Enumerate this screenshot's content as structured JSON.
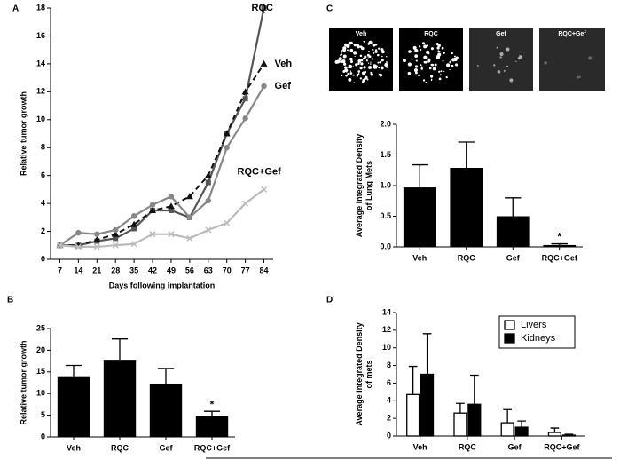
{
  "chart_data": [
    {
      "type": "line",
      "panel_label": "A",
      "xlabel": "Days following implantation",
      "ylabel": "Relative tumor growth",
      "categories": [
        "7",
        "14",
        "21",
        "28",
        "35",
        "42",
        "49",
        "56",
        "63",
        "70",
        "77",
        "84"
      ],
      "ylim": [
        0,
        18
      ],
      "yticks": [
        0,
        2,
        4,
        6,
        8,
        10,
        12,
        14,
        16,
        18
      ],
      "series": [
        {
          "name": "RQC",
          "color": "#555555",
          "marker": "square",
          "dash": false,
          "values": [
            1,
            1.0,
            1.3,
            1.5,
            2.2,
            3.5,
            3.5,
            3.0,
            5.5,
            9.0,
            11.5,
            18
          ]
        },
        {
          "name": "Veh",
          "color": "#111111",
          "marker": "triangle",
          "dash": true,
          "values": [
            1,
            1.0,
            1.4,
            1.8,
            2.5,
            3.5,
            3.8,
            4.5,
            6.0,
            9.0,
            12.0,
            14.0
          ]
        },
        {
          "name": "Gef",
          "color": "#888888",
          "marker": "circle",
          "dash": false,
          "values": [
            1,
            1.9,
            1.8,
            2.1,
            3.1,
            3.9,
            4.5,
            3.0,
            4.2,
            8.0,
            10.1,
            12.4
          ]
        },
        {
          "name": "RQC+Gef",
          "color": "#bbbbbb",
          "marker": "x",
          "dash": false,
          "values": [
            1,
            0.9,
            0.9,
            1.0,
            1.1,
            1.8,
            1.8,
            1.5,
            2.1,
            2.6,
            4.0,
            5.0
          ]
        }
      ]
    },
    {
      "type": "bar",
      "panel_label": "B",
      "ylabel": "Relative tumor growth",
      "annotation": "*",
      "categories": [
        "Veh",
        "RQC",
        "Gef",
        "RQC+Gef"
      ],
      "values": [
        14.0,
        17.8,
        12.3,
        4.9
      ],
      "errors": [
        2.5,
        4.8,
        3.5,
        1.0
      ],
      "color": "#000000",
      "ylim": [
        0,
        25
      ],
      "yticks": [
        0,
        5,
        10,
        15,
        20,
        25
      ]
    },
    {
      "type": "bar",
      "panel_label": "C",
      "ylabel": [
        "Average Integrated Density",
        "of Lung Mets"
      ],
      "annotation": "*",
      "image_labels": [
        "Veh",
        "RQC",
        "Gef",
        "RQC+Gef"
      ],
      "categories": [
        "Veh",
        "RQC",
        "Gef",
        "RQC+Gef"
      ],
      "values": [
        0.97,
        1.29,
        0.5,
        0.03
      ],
      "errors": [
        0.37,
        0.42,
        0.3,
        0.02
      ],
      "color": "#000000",
      "ylim": [
        0,
        2
      ],
      "yticks": [
        {
          "value": 0,
          "label": "0.0"
        },
        {
          "value": 0.5,
          "label": "0.5"
        },
        {
          "value": 1,
          "label": "1.0"
        },
        {
          "value": 1.5,
          "label": "1.5"
        },
        {
          "value": 2,
          "label": "2.0"
        }
      ]
    },
    {
      "type": "grouped_bar",
      "panel_label": "D",
      "ylabel": [
        "Average Integrated Density",
        "of mets"
      ],
      "legend": "top-right",
      "categories": [
        "Veh",
        "RQC",
        "Gef",
        "RQC+Gef"
      ],
      "series": [
        {
          "name": "Livers",
          "color": "#ffffff",
          "values": [
            4.7,
            2.6,
            1.5,
            0.4
          ],
          "errors": [
            3.2,
            1.1,
            1.5,
            0.5
          ]
        },
        {
          "name": "Kidneys",
          "color": "#000000",
          "values": [
            7.0,
            3.6,
            1.0,
            0.1
          ],
          "errors": [
            4.6,
            3.3,
            0.7,
            0.1
          ]
        }
      ],
      "ylim": [
        0,
        14
      ],
      "yticks": [
        0,
        2,
        4,
        6,
        8,
        10,
        12,
        14
      ]
    }
  ]
}
